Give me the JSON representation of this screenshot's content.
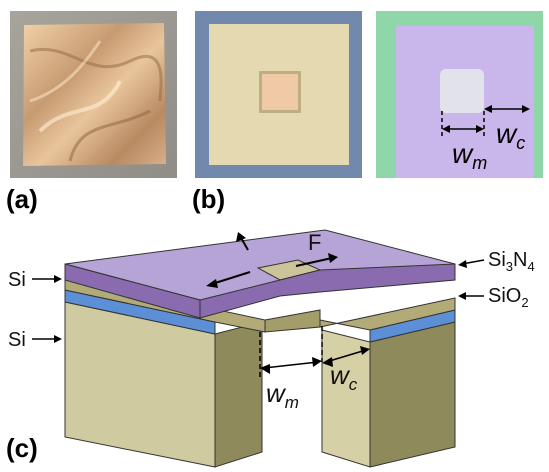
{
  "panels": {
    "a": {
      "label": "(a)"
    },
    "b": {
      "label": "(b)"
    },
    "c": {
      "label": "(c)"
    }
  },
  "photo_labels": {
    "wm": {
      "base": "w",
      "sub": "m"
    },
    "wc": {
      "base": "w",
      "sub": "c"
    }
  },
  "diagram": {
    "si3n4": {
      "base": "Si",
      "sub": "3",
      "rest": "N",
      "sub2": "4"
    },
    "sio2": {
      "base": "SiO",
      "sub": "2"
    },
    "si_top": "Si",
    "si_bottom": "Si",
    "force": "F",
    "wm": {
      "base": "w",
      "sub": "m"
    },
    "wc": {
      "base": "w",
      "sub": "c"
    }
  },
  "colors": {
    "si3n4_top": "#b7a4d6",
    "si3n4_front": "#8a6bb0",
    "sio2": "#5d8fd6",
    "si": "#cfcaa0",
    "si_dark": "#8f8a5c",
    "photo_b_border": "#7189ad",
    "photo_c_border": "#8fd6a8",
    "photo_c_membrane": "#c9b6ea"
  }
}
